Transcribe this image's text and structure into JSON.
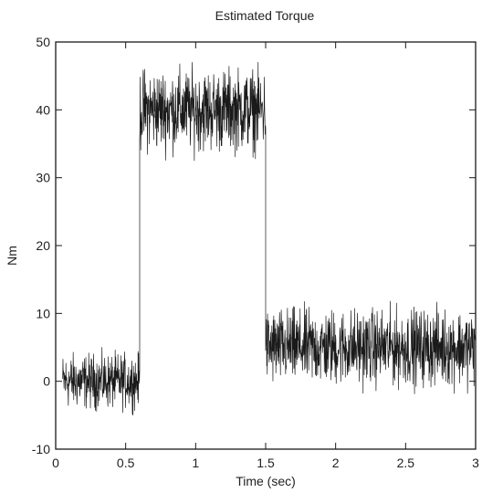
{
  "chart_data": {
    "type": "line",
    "title": "Estimated Torque",
    "xlabel": "Time (sec)",
    "ylabel": "Nm",
    "xlim": [
      0,
      3
    ],
    "ylim": [
      -10,
      50
    ],
    "xticks": [
      0,
      0.5,
      1,
      1.5,
      2,
      2.5,
      3
    ],
    "xtick_labels": [
      "0",
      "0.5",
      "1",
      "1.5",
      "2",
      "2.5",
      "3"
    ],
    "yticks": [
      -10,
      0,
      10,
      20,
      30,
      40,
      50
    ],
    "ytick_labels": [
      "-10",
      "0",
      "10",
      "20",
      "30",
      "40",
      "50"
    ],
    "grid": false,
    "legend": "none",
    "series": [
      {
        "color": "#1a1a1a",
        "segments": [
          {
            "x_start": 0.05,
            "x_end": 0.6,
            "mean": 0,
            "low": -5,
            "high": 5
          },
          {
            "x_start": 0.6,
            "x_end": 1.5,
            "mean": 40,
            "low": 32,
            "high": 47
          },
          {
            "x_start": 1.5,
            "x_end": 3.0,
            "mean": 5,
            "low": -2,
            "high": 12
          }
        ]
      }
    ]
  }
}
